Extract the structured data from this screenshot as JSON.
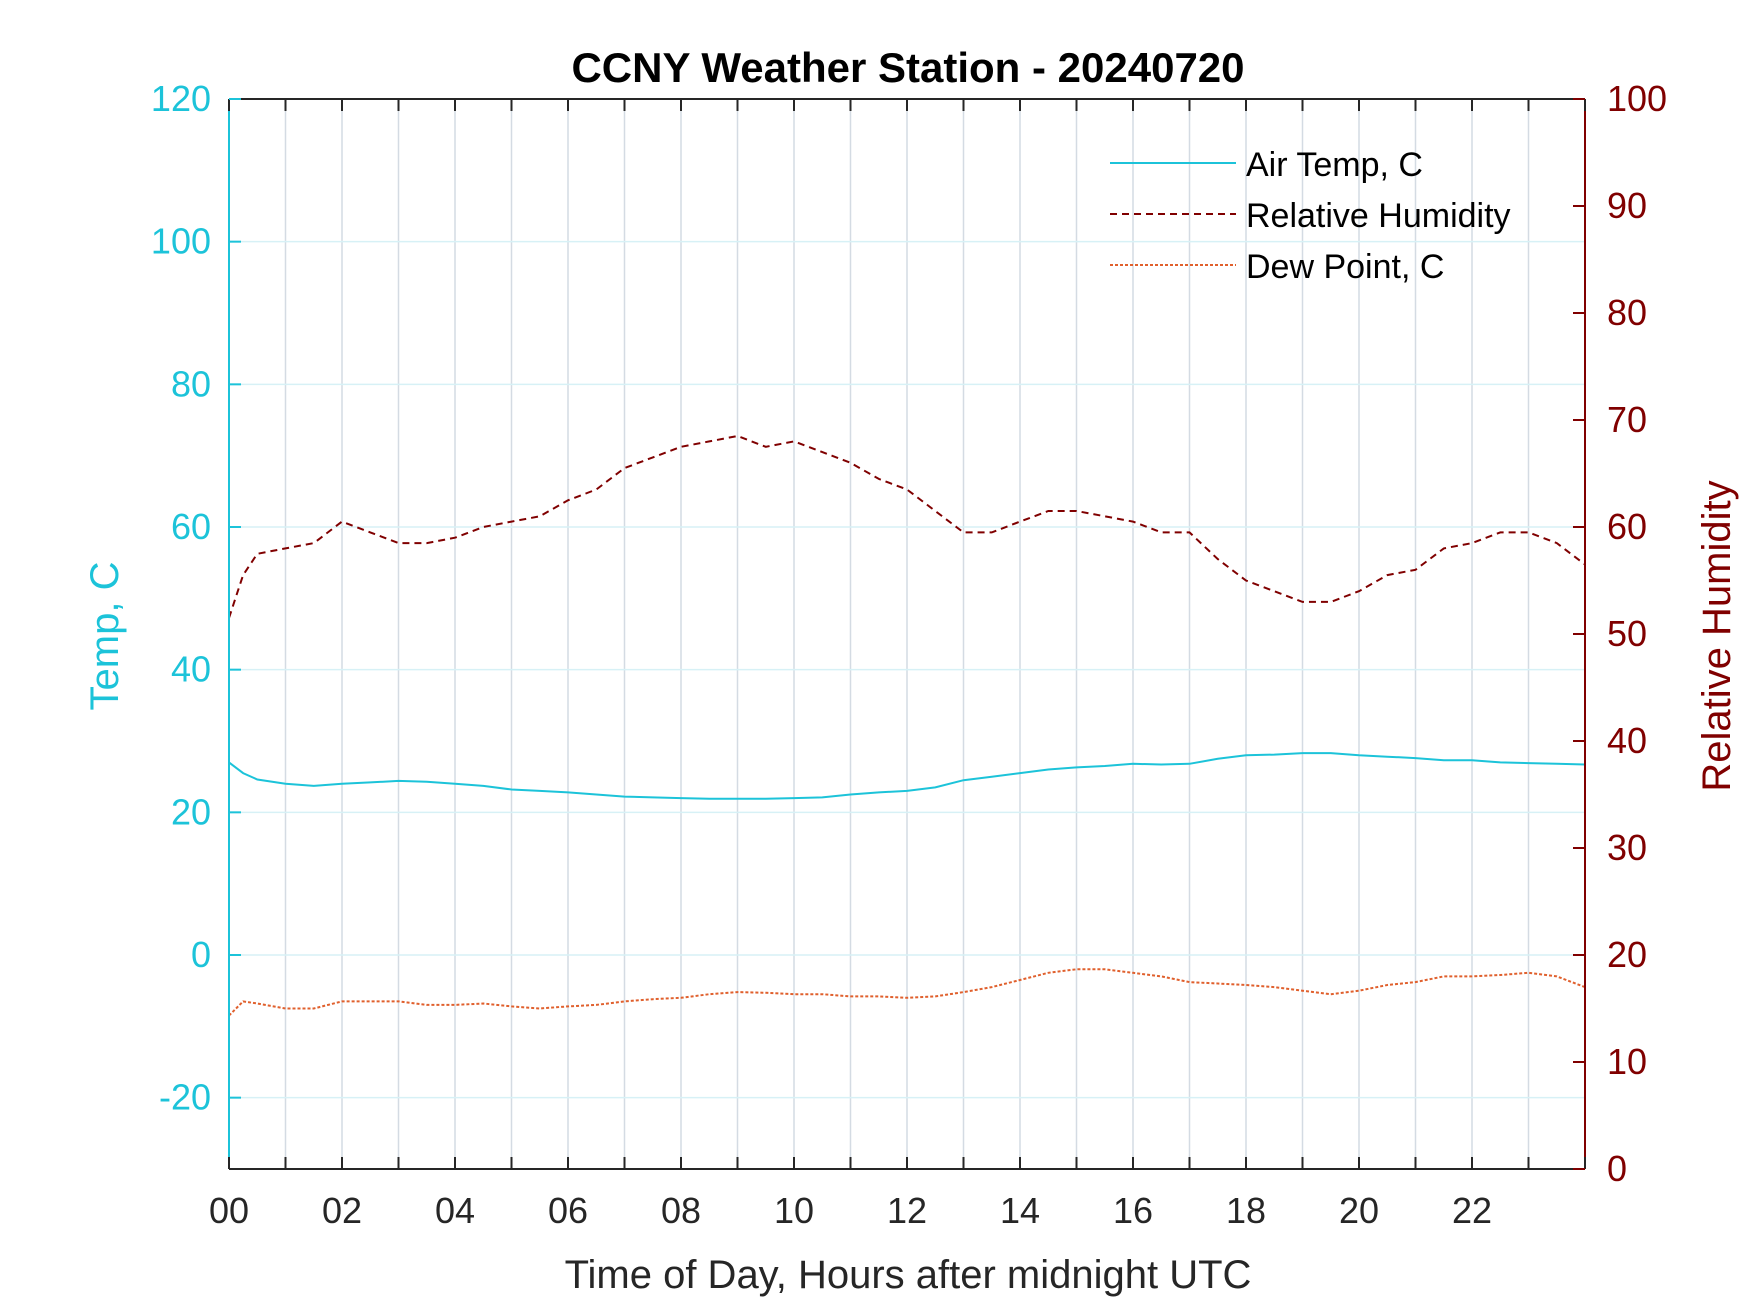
{
  "chart_data": {
    "type": "line",
    "title": "CCNY Weather Station - 20240720",
    "xlabel": "Time of Day, Hours after midnight UTC",
    "ylabel_left": "Temp, C",
    "ylabel_right": "Relative Humidity",
    "xlim": [
      0,
      24
    ],
    "ylim_left": [
      -30,
      120
    ],
    "ylim_right": [
      0,
      100
    ],
    "x_ticks": [
      0,
      2,
      4,
      6,
      8,
      10,
      12,
      14,
      16,
      18,
      20,
      22
    ],
    "x_tick_labels": [
      "00",
      "02",
      "04",
      "06",
      "08",
      "10",
      "12",
      "14",
      "16",
      "18",
      "20",
      "22"
    ],
    "y_left_ticks": [
      -20,
      0,
      20,
      40,
      60,
      80,
      100,
      120
    ],
    "y_left_tick_labels": [
      "-20",
      "0",
      "20",
      "40",
      "60",
      "80",
      "100",
      "120"
    ],
    "y_right_ticks": [
      0,
      10,
      20,
      30,
      40,
      50,
      60,
      70,
      80,
      90,
      100
    ],
    "y_right_tick_labels": [
      "0",
      "10",
      "20",
      "30",
      "40",
      "50",
      "60",
      "70",
      "80",
      "90",
      "100"
    ],
    "grid": true,
    "legend_position": "top-right",
    "colors": {
      "left_axis": "#1cc3d9",
      "right_axis": "#800000",
      "air_temp": "#1cc3d9",
      "humidity": "#800000",
      "dew_point": "#e0602d"
    },
    "x": [
      0,
      0.25,
      0.5,
      1,
      1.5,
      2,
      2.5,
      3,
      3.5,
      4,
      4.5,
      5,
      5.5,
      6,
      6.5,
      7,
      7.5,
      8,
      8.5,
      9,
      9.5,
      10,
      10.5,
      11,
      11.5,
      12,
      12.5,
      13,
      13.5,
      14,
      14.5,
      15,
      15.5,
      16,
      16.5,
      17,
      17.5,
      18,
      18.5,
      19,
      19.5,
      20,
      20.5,
      21,
      21.5,
      22,
      22.5,
      23,
      23.5,
      24
    ],
    "series": [
      {
        "name": "Air Temp, C",
        "axis": "left",
        "style": "solid",
        "values": [
          27,
          25.5,
          24.6,
          24.0,
          23.7,
          24.0,
          24.2,
          24.4,
          24.3,
          24.0,
          23.7,
          23.2,
          23.0,
          22.8,
          22.5,
          22.2,
          22.1,
          22.0,
          21.9,
          21.9,
          21.9,
          22.0,
          22.1,
          22.5,
          22.8,
          23.0,
          23.5,
          24.5,
          25.0,
          25.5,
          26.0,
          26.3,
          26.5,
          26.8,
          26.7,
          26.8,
          27.5,
          28.0,
          28.1,
          28.3,
          28.3,
          28.0,
          27.8,
          27.6,
          27.3,
          27.3,
          27.0,
          26.9,
          26.8,
          26.7
        ]
      },
      {
        "name": "Relative Humidity",
        "axis": "right",
        "style": "dashed",
        "values": [
          51.5,
          55.5,
          57.5,
          58.0,
          58.5,
          60.5,
          59.5,
          58.5,
          58.5,
          59.0,
          60.0,
          60.5,
          61.0,
          62.5,
          63.5,
          65.5,
          66.5,
          67.5,
          68.0,
          68.5,
          67.5,
          68.0,
          67.0,
          66.0,
          64.5,
          63.5,
          61.5,
          59.5,
          59.5,
          60.5,
          61.5,
          61.5,
          61.0,
          60.5,
          59.5,
          59.5,
          57.0,
          55.0,
          54.0,
          53.0,
          53.0,
          54.0,
          55.5,
          56.0,
          58.0,
          58.5,
          59.5,
          59.5,
          58.5,
          56.5
        ]
      },
      {
        "name": "Dew Point, C",
        "axis": "left",
        "style": "dotted",
        "values": [
          -8.5,
          -6.5,
          -6.8,
          -7.5,
          -7.5,
          -6.5,
          -6.5,
          -6.5,
          -7.0,
          -7.0,
          -6.8,
          -7.2,
          -7.5,
          -7.2,
          -7.0,
          -6.5,
          -6.2,
          -6.0,
          -5.5,
          -5.2,
          -5.3,
          -5.5,
          -5.5,
          -5.8,
          -5.8,
          -6.0,
          -5.8,
          -5.2,
          -4.5,
          -3.5,
          -2.5,
          -2.0,
          -2.0,
          -2.5,
          -3.0,
          -3.8,
          -4.0,
          -4.2,
          -4.5,
          -5.0,
          -5.5,
          -5.0,
          -4.2,
          -3.8,
          -3.0,
          -3.0,
          -2.8,
          -2.5,
          -3.0,
          -4.5
        ]
      }
    ]
  }
}
